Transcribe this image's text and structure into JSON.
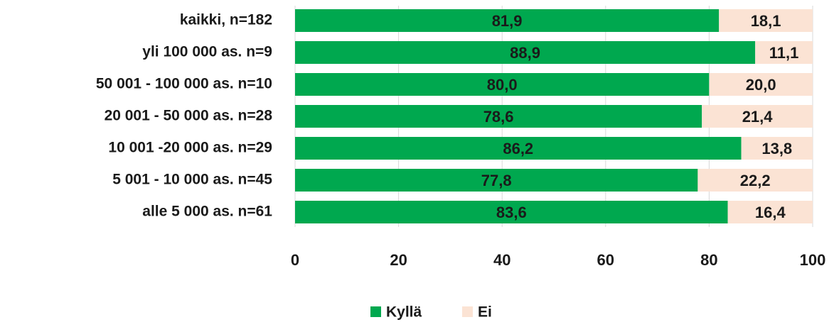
{
  "chart_data": {
    "type": "stacked_barh",
    "categories": [
      "kaikki, n=182",
      "yli 100 000 as. n=9",
      "50 001 - 100 000 as. n=10",
      "20 001 - 50 000 as. n=28",
      "10 001 -20 000 as. n=29",
      "5 001 - 10 000 as. n=45",
      "alle 5 000 as. n=61"
    ],
    "series": [
      {
        "name": "Kyllä",
        "color": "#00a84f",
        "values": [
          81.9,
          88.9,
          80.0,
          78.6,
          86.2,
          77.8,
          83.6
        ],
        "value_labels": [
          "81,9",
          "88,9",
          "80,0",
          "78,6",
          "86,2",
          "77,8",
          "83,6"
        ]
      },
      {
        "name": "Ei",
        "color": "#fbe3d4",
        "values": [
          18.1,
          11.1,
          20.0,
          21.4,
          13.8,
          22.2,
          16.4
        ],
        "value_labels": [
          "18,1",
          "11,1",
          "20,0",
          "21,4",
          "13,8",
          "22,2",
          "16,4"
        ]
      }
    ],
    "xlim": [
      0,
      100
    ],
    "xticks": [
      0,
      20,
      40,
      60,
      80,
      100
    ],
    "grid": true,
    "legend": "bottom"
  }
}
